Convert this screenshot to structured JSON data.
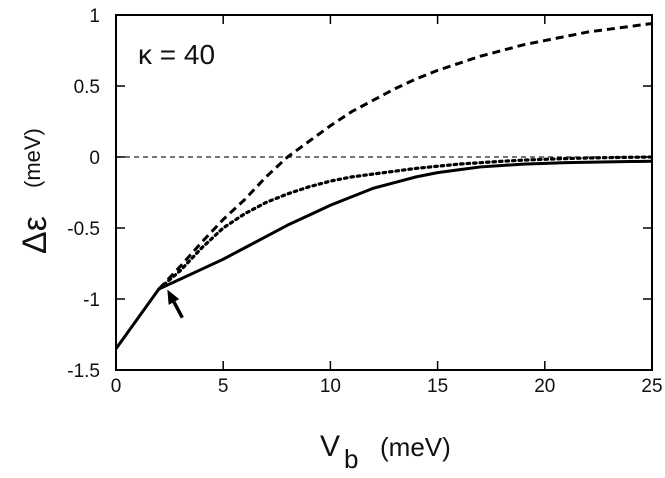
{
  "chart_data": {
    "type": "line",
    "title": "",
    "annotation": "κ = 40",
    "xlabel": {
      "main": "V",
      "subscript": "b",
      "unit": "(meV)"
    },
    "ylabel": {
      "symbol": "Δε",
      "unit": "(meV)"
    },
    "xlim": [
      0,
      25
    ],
    "ylim": [
      -1.5,
      1
    ],
    "xticks": [
      0,
      5,
      10,
      15,
      20,
      25
    ],
    "xtick_labels": [
      "0",
      "5",
      "10",
      "15",
      "20",
      "25"
    ],
    "yticks": [
      1,
      0.5,
      0,
      -0.5,
      -1,
      -1.5
    ],
    "ytick_labels": [
      "1",
      "0.5",
      "0",
      "-0.5",
      "-1",
      "-1.5"
    ],
    "reference_line": {
      "y": 0,
      "style": "dashed-thin"
    },
    "arrow_target": {
      "x": 2.3,
      "y": -0.92
    },
    "series": [
      {
        "name": "dashed",
        "style": "dashed",
        "x": [
          2.0,
          3,
          4,
          5,
          6,
          7,
          8,
          9,
          10,
          11,
          12,
          13,
          14,
          15,
          16,
          17,
          18,
          19,
          20,
          21,
          22,
          23,
          24,
          25
        ],
        "y": [
          -0.93,
          -0.77,
          -0.6,
          -0.44,
          -0.3,
          -0.14,
          0.0,
          0.11,
          0.22,
          0.32,
          0.4,
          0.48,
          0.55,
          0.61,
          0.66,
          0.71,
          0.75,
          0.79,
          0.82,
          0.85,
          0.88,
          0.9,
          0.92,
          0.94
        ]
      },
      {
        "name": "dotted",
        "style": "dotted",
        "x": [
          2.0,
          3,
          4,
          5,
          6,
          7,
          8,
          9,
          10,
          11,
          12,
          13,
          14,
          15,
          16,
          17,
          18,
          19,
          20,
          21,
          22,
          23,
          24,
          25
        ],
        "y": [
          -0.93,
          -0.8,
          -0.64,
          -0.5,
          -0.4,
          -0.32,
          -0.26,
          -0.21,
          -0.17,
          -0.14,
          -0.12,
          -0.1,
          -0.08,
          -0.065,
          -0.05,
          -0.04,
          -0.03,
          -0.022,
          -0.016,
          -0.011,
          -0.007,
          -0.004,
          -0.002,
          0.0
        ]
      },
      {
        "name": "solid",
        "style": "solid",
        "x": [
          0,
          1,
          2.0,
          3,
          4,
          5,
          6,
          7,
          8,
          9,
          10,
          11,
          12,
          13,
          14,
          15,
          16,
          17,
          18,
          19,
          20,
          21,
          22,
          23,
          24,
          25
        ],
        "y": [
          -1.35,
          -1.14,
          -0.93,
          -0.86,
          -0.79,
          -0.72,
          -0.64,
          -0.56,
          -0.48,
          -0.41,
          -0.34,
          -0.28,
          -0.22,
          -0.18,
          -0.14,
          -0.11,
          -0.09,
          -0.07,
          -0.06,
          -0.05,
          -0.045,
          -0.04,
          -0.037,
          -0.034,
          -0.032,
          -0.03
        ]
      }
    ]
  }
}
